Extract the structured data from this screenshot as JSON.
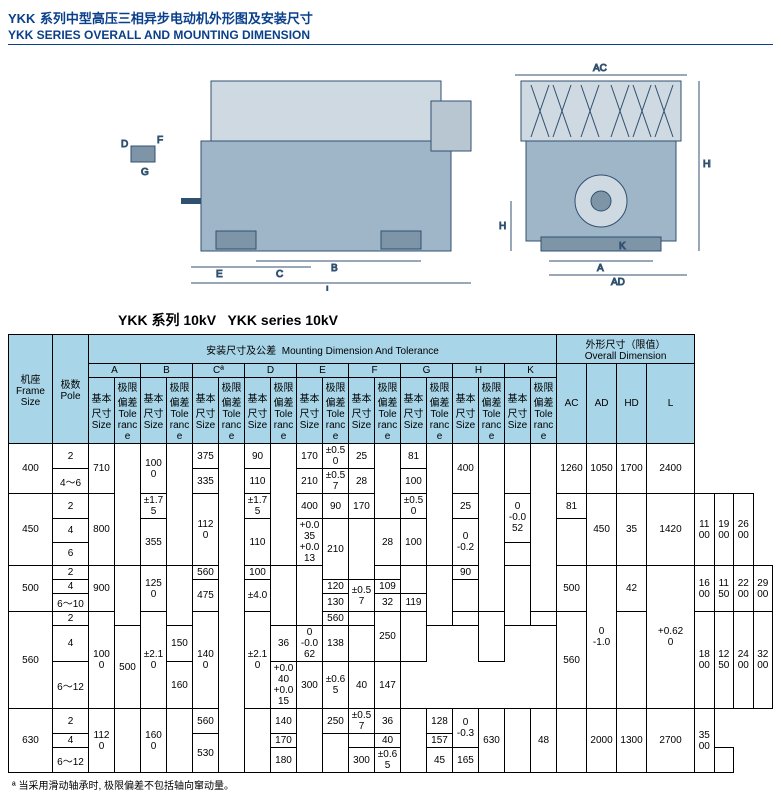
{
  "header": {
    "model": "YKK",
    "title_cn": "系列中型高压三相异步电动机外形图及安装尺寸",
    "title_en": "YKK SERIES OVERALL AND MOUNTING DIMENSION"
  },
  "drawing": {
    "labels": [
      "D",
      "F",
      "G",
      "E",
      "C",
      "B",
      "L",
      "AC",
      "HD",
      "H",
      "K",
      "A",
      "AD"
    ],
    "stroke": "#305070",
    "fill": "#9fb6c8"
  },
  "subtitle": {
    "cn": "YKK 系列 10kV",
    "en": "YKK series 10kV"
  },
  "table_headers": {
    "frame_cn": "机座",
    "frame_en": "Frame Size",
    "pole_cn": "极数",
    "pole_en": "Pole",
    "mount_cn": "安装尺寸及公差",
    "mount_en": "Mounting Dimension And Tolerance",
    "overall_cn": "外形尺寸（限值）",
    "overall_en": "Overall Dimension",
    "cols": [
      "A",
      "B",
      "Cª",
      "D",
      "E",
      "F",
      "G",
      "H",
      "K"
    ],
    "sub_size_cn": "基本尺寸",
    "sub_size_en": "Size",
    "sub_tol_cn": "极限偏差",
    "sub_tol_en": "Tolerance",
    "od_cols": [
      "AC",
      "AD",
      "HD",
      "L"
    ]
  },
  "rows": [
    {
      "frame": "400",
      "poles": [
        "2",
        "4～6"
      ],
      "A": "710",
      "Atol": "",
      "B": "1000",
      "Btol": "",
      "C": [
        "375",
        "335"
      ],
      "D": [
        "90",
        "110"
      ],
      "Dtol": "",
      "E": [
        "170",
        "210"
      ],
      "Etol": [
        "±0.50",
        "±0.57"
      ],
      "F": [
        "25",
        "28"
      ],
      "Ftol": "",
      "G": [
        "81",
        "100"
      ],
      "Gtol": "",
      "H": "400",
      "Htol": "",
      "K": "",
      "Ktol": "",
      "AC": "1260",
      "AD": "1050",
      "HD": "1700",
      "L": "2400"
    },
    {
      "frame": "450",
      "poles": [
        "2",
        "4",
        "6"
      ],
      "A": "800",
      "Atol": "±1.75",
      "B": "1120",
      "Btol": "±1.75",
      "C": [
        "400",
        "355"
      ],
      "D": [
        "90",
        "110"
      ],
      "Dtol": "+0.035\n+0.013",
      "E": [
        "170",
        "210"
      ],
      "Etol": [
        "±0.50",
        ""
      ],
      "F": [
        "25",
        "28"
      ],
      "Ftol": "0\n-0.052",
      "G": [
        "81",
        "100"
      ],
      "Gtol": "0\n-0.2",
      "H": "450",
      "Htol": "",
      "K": "35",
      "Ktol": "",
      "AC": "1420",
      "AD": "1100",
      "HD": "1900",
      "L": "2600"
    },
    {
      "frame": "500",
      "poles": [
        "2",
        "4",
        "6～10"
      ],
      "A": "900",
      "Atol": "",
      "B": "1250",
      "Btol": "",
      "C": [
        "560",
        "475"
      ],
      "Ctol": "±4.0",
      "D": [
        "100",
        "120",
        "130"
      ],
      "Dtol": "",
      "E": [
        "",
        "",
        ""
      ],
      "Etol": [
        "",
        "±0.57",
        ""
      ],
      "Eblock": "",
      "F": [
        "",
        "",
        "32"
      ],
      "Ftol": "",
      "G": [
        "90",
        "109",
        "119"
      ],
      "Gtol": "",
      "H": "500",
      "Htol": "0\n-1.0",
      "K": "42",
      "Ktol": "+0.62\n0",
      "AC": "1600",
      "AD": "1150",
      "HD": "2200",
      "L": "2900"
    },
    {
      "frame": "560",
      "poles": [
        "2",
        "4",
        "6～12"
      ],
      "A": "1000",
      "Atol": "±2.10",
      "B": "1400",
      "Btol": "±2.10",
      "C": [
        "560",
        "500"
      ],
      "D": [
        "",
        "150",
        "160"
      ],
      "Dtol": "+0.040\n+0.015",
      "E": [
        "250",
        "",
        "300"
      ],
      "Etol": [
        "",
        "",
        "±0.65"
      ],
      "F": [
        "",
        "36",
        "40"
      ],
      "Ftol": "0\n-0.062",
      "G": [
        "",
        "138",
        "147"
      ],
      "Gtol": "",
      "H": "560",
      "Htol": "",
      "K": "",
      "Ktol": "",
      "AC": "1800",
      "AD": "1250",
      "HD": "2400",
      "L": "3200"
    },
    {
      "frame": "630",
      "poles": [
        "2",
        "4",
        "6～12"
      ],
      "A": "1120",
      "Atol": "",
      "B": "1600",
      "Btol": "",
      "C": [
        "560",
        "530"
      ],
      "D": [
        "140",
        "170",
        "180"
      ],
      "Dtol": "",
      "E": [
        "250",
        "",
        "300"
      ],
      "Etol": [
        "±0.57",
        "",
        "±0.65"
      ],
      "F": [
        "36",
        "40",
        "45"
      ],
      "Ftol": "",
      "G": [
        "128",
        "157",
        "165"
      ],
      "Gtol": "0\n-0.3",
      "H": "630",
      "Htol": "",
      "K": "48",
      "Ktol": "",
      "AC": "2000",
      "AD": "1300",
      "HD": "2700",
      "L": "3500"
    }
  ],
  "footnote": "ª 当采用滑动轴承时, 极限偏差不包括轴向窜动量。"
}
